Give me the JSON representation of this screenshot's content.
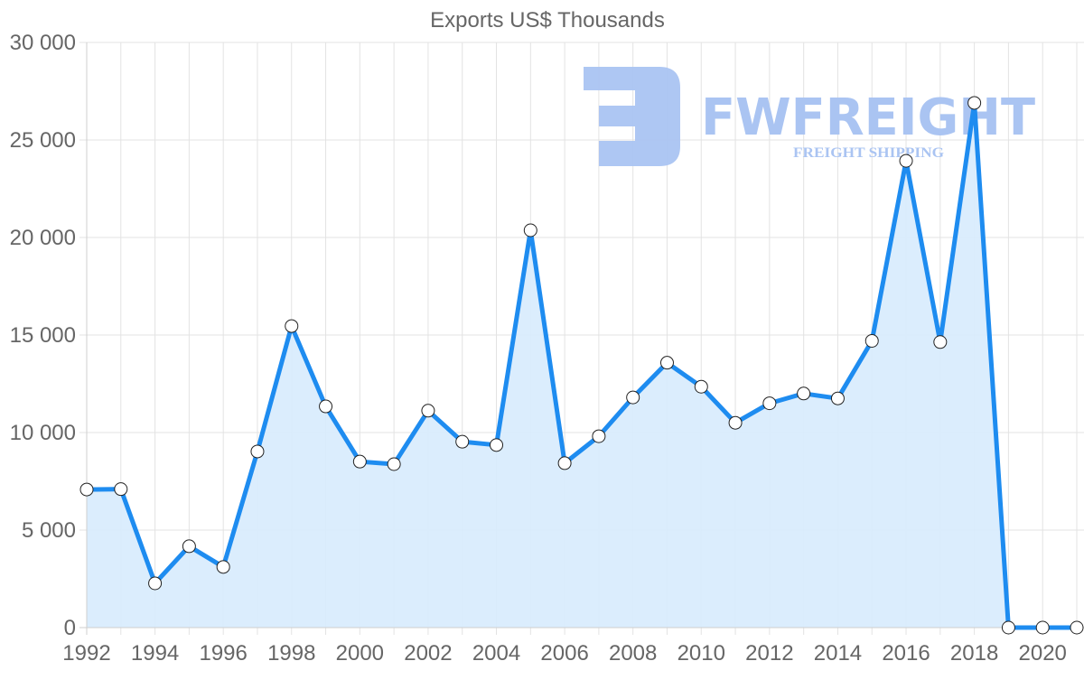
{
  "chart_data": {
    "type": "line",
    "title": "Exports US$ Thousands",
    "xlabel": "",
    "ylabel": "",
    "ylim": [
      0,
      30000
    ],
    "y_ticks": [
      0,
      5000,
      10000,
      15000,
      20000,
      25000,
      30000
    ],
    "y_tick_labels": [
      "0",
      "5 000",
      "10 000",
      "15 000",
      "20 000",
      "25 000",
      "30 000"
    ],
    "x": [
      1992,
      1993,
      1994,
      1995,
      1996,
      1997,
      1998,
      1999,
      2000,
      2001,
      2002,
      2003,
      2004,
      2005,
      2006,
      2007,
      2008,
      2009,
      2010,
      2011,
      2012,
      2013,
      2014,
      2015,
      2016,
      2017,
      2018,
      2019,
      2020,
      2021
    ],
    "x_tick_labels": [
      "1992",
      "1994",
      "1996",
      "1998",
      "2000",
      "2002",
      "2004",
      "2006",
      "2008",
      "2010",
      "2012",
      "2014",
      "2016",
      "2018",
      "2020"
    ],
    "series": [
      {
        "name": "Exports US$ Thousands",
        "values": [
          7080,
          7100,
          2270,
          4170,
          3110,
          9030,
          15460,
          11340,
          8510,
          8380,
          11120,
          9530,
          9360,
          20370,
          8430,
          9810,
          11800,
          13580,
          12350,
          10500,
          11500,
          12000,
          11750,
          14700,
          23930,
          14640,
          26900,
          0,
          0,
          0
        ]
      }
    ],
    "grid": true,
    "legend": "none",
    "colors": {
      "line": "#1e8cf0",
      "fill": "#d8ecfd",
      "point_fill": "#ffffff",
      "point_stroke": "#222222",
      "grid": "#e3e3e3",
      "text": "#666666"
    }
  },
  "watermark": {
    "brand": "FWFREIGHT",
    "tagline": "FREIGHT SHIPPING",
    "color": "#aac4f2"
  }
}
